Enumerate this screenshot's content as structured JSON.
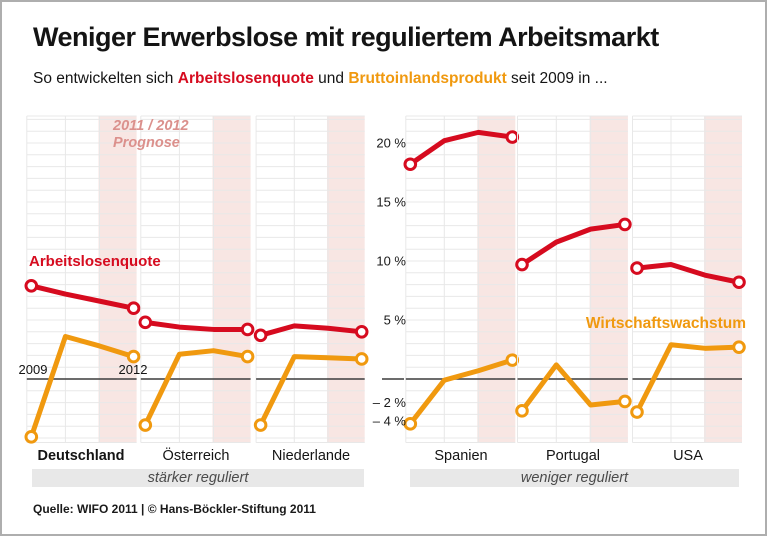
{
  "header": {
    "title": "Weniger Erwerbslose mit reguliertem Arbeitsmarkt",
    "subtitle_prefix": "So entwickelten sich ",
    "subtitle_red": "Arbeitslosenquote",
    "subtitle_mid": " und ",
    "subtitle_orange": "Bruttoinlandsprodukt",
    "subtitle_suffix": " seit 2009 in ..."
  },
  "annotations": {
    "prognose_line1": "2011 / 2012",
    "prognose_line2": "Prognose",
    "unemployment_label": "Arbeitslosenquote",
    "growth_label": "Wirtschaftswachstum",
    "year_start": "2009",
    "year_end": "2012"
  },
  "groups": [
    {
      "label": "stärker reguliert"
    },
    {
      "label": "weniger reguliert"
    }
  ],
  "footer": {
    "source": "Quelle: WIFO 2011 | © Hans-Böckler-Stiftung 2011"
  },
  "colors": {
    "red": "#d60b1f",
    "orange": "#f0990f",
    "forecast_band": "#f8e6e3",
    "forecast_text": "#db908c",
    "grid": "#e8e8e8",
    "zero_line": "#3c3c3c",
    "group_bar": "#e8e8e8",
    "tick_text": "#191919"
  },
  "chart_data": {
    "type": "line",
    "x": [
      2009,
      2010,
      2011,
      2012
    ],
    "forecast_years": [
      2011,
      2012
    ],
    "ylim": [
      -5.3,
      22.3
    ],
    "grid_step_percent": 1,
    "y_axis_ticks": [
      {
        "label": "20 %",
        "value": 20
      },
      {
        "label": "15 %",
        "value": 15
      },
      {
        "label": "10 %",
        "value": 10
      },
      {
        "label": "5 %",
        "value": 5
      },
      {
        "label": "– 2 %",
        "value": -2
      },
      {
        "label": "– 4 %",
        "value": -4,
        "nudge": -5
      }
    ],
    "series_names": {
      "unemployment": "Arbeitslosenquote",
      "gdp_growth": "Wirtschaftswachstum (Bruttoinlandsprodukt)"
    },
    "countries": [
      {
        "name": "Deutschland",
        "group": "stärker reguliert",
        "unemployment": [
          7.9,
          7.2,
          6.6,
          6.0
        ],
        "gdp_growth": [
          -4.9,
          3.6,
          2.8,
          1.9
        ]
      },
      {
        "name": "Österreich",
        "group": "stärker reguliert",
        "unemployment": [
          4.8,
          4.4,
          4.2,
          4.2
        ],
        "gdp_growth": [
          -3.9,
          2.1,
          2.4,
          1.9
        ]
      },
      {
        "name": "Niederlande",
        "group": "stärker reguliert",
        "unemployment": [
          3.7,
          4.5,
          4.3,
          4.0
        ],
        "gdp_growth": [
          -3.9,
          1.9,
          1.8,
          1.7
        ]
      },
      {
        "name": "Spanien",
        "group": "weniger reguliert",
        "unemployment": [
          18.2,
          20.2,
          20.9,
          20.5
        ],
        "gdp_growth": [
          -3.8,
          -0.1,
          0.7,
          1.6
        ]
      },
      {
        "name": "Portugal",
        "group": "weniger reguliert",
        "unemployment": [
          9.7,
          11.6,
          12.7,
          13.1
        ],
        "gdp_growth": [
          -2.7,
          1.2,
          -2.2,
          -1.9
        ]
      },
      {
        "name": "USA",
        "group": "weniger reguliert",
        "unemployment": [
          9.4,
          9.7,
          8.8,
          8.2
        ],
        "gdp_growth": [
          -2.8,
          2.9,
          2.6,
          2.7
        ]
      }
    ]
  }
}
